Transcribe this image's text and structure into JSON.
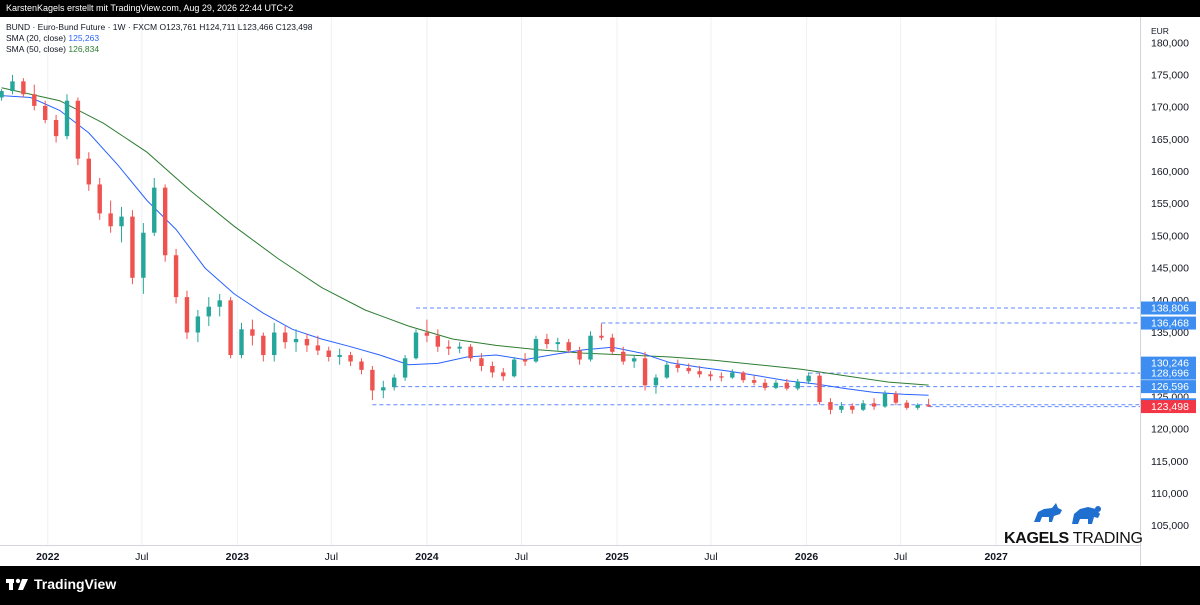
{
  "header": {
    "title": "KarstenKagels erstellt mit TradingView.com, Aug 29, 2026 22:44 UTC+2"
  },
  "legend": {
    "symbol_line": "BUND · Euro-Bund Future · 1W · FXCM  O123,761  H124,711  L123,466  C123,498",
    "sma20_label": "SMA (20, close)",
    "sma20_value": "125,263",
    "sma50_label": "SMA (50, close)",
    "sma50_value": "126,834"
  },
  "currency": "EUR",
  "brand": {
    "name_bold": "KAGELS",
    "name_light": " TRADING"
  },
  "footer": {
    "logo_text": "TradingView"
  },
  "colors": {
    "up": "#26a69a",
    "down": "#ef5350",
    "sma20": "#2962ff",
    "sma50": "#2e7d32",
    "level": "#2962ff",
    "label_bg": "#3d8ef0",
    "last_bg": "#f23645"
  },
  "chart_data": {
    "type": "candlestick",
    "timeframe": "1W",
    "ylim": [
      102000,
      184000
    ],
    "y_ticks": [
      "105,000",
      "110,000",
      "115,000",
      "120,000",
      "125,000",
      "130,000",
      "135,000",
      "140,000",
      "145,000",
      "150,000",
      "155,000",
      "160,000",
      "165,000",
      "170,000",
      "175,000",
      "180,000"
    ],
    "y_tick_values": [
      105000,
      110000,
      115000,
      120000,
      125000,
      130000,
      135000,
      140000,
      145000,
      150000,
      155000,
      160000,
      165000,
      170000,
      175000,
      180000
    ],
    "x_ticks": [
      "2022",
      "Jul",
      "2023",
      "Jul",
      "2024",
      "Jul",
      "2025",
      "Jul",
      "2026",
      "Jul",
      "2027"
    ],
    "x_tick_dates": [
      "2022-01-01",
      "2022-07-01",
      "2023-01-01",
      "2023-07-01",
      "2024-01-01",
      "2024-07-01",
      "2025-01-01",
      "2025-07-01",
      "2026-01-01",
      "2026-07-01",
      "2027-01-01"
    ],
    "x_range": [
      "2021-10-01",
      "2027-10-05"
    ],
    "ohlc": [
      [
        "2021-10-04",
        171500,
        172800,
        171000,
        172500
      ],
      [
        "2021-10-25",
        172500,
        175000,
        172000,
        174000
      ],
      [
        "2021-11-15",
        174000,
        174500,
        171500,
        172000
      ],
      [
        "2021-12-06",
        172000,
        173500,
        169500,
        170200
      ],
      [
        "2021-12-27",
        170200,
        171000,
        167500,
        168000
      ],
      [
        "2022-01-17",
        168000,
        168800,
        164500,
        165500
      ],
      [
        "2022-02-07",
        165500,
        172000,
        165000,
        171000
      ],
      [
        "2022-02-28",
        171000,
        171500,
        161000,
        162000
      ],
      [
        "2022-03-21",
        162000,
        163000,
        157000,
        158000
      ],
      [
        "2022-04-11",
        158000,
        159000,
        152500,
        153500
      ],
      [
        "2022-05-02",
        153500,
        155500,
        150500,
        151500
      ],
      [
        "2022-05-23",
        151500,
        154500,
        149000,
        153000
      ],
      [
        "2022-06-13",
        153000,
        154000,
        142500,
        143500
      ],
      [
        "2022-07-04",
        143500,
        152000,
        141000,
        150500
      ],
      [
        "2022-07-25",
        150500,
        159000,
        150000,
        157500
      ],
      [
        "2022-08-15",
        157500,
        158000,
        146000,
        147000
      ],
      [
        "2022-09-05",
        147000,
        148000,
        139500,
        140500
      ],
      [
        "2022-09-26",
        140500,
        141500,
        134000,
        135000
      ],
      [
        "2022-10-17",
        135000,
        138500,
        133500,
        137500
      ],
      [
        "2022-11-07",
        137500,
        140500,
        136000,
        139000
      ],
      [
        "2022-11-28",
        139000,
        141000,
        137500,
        140000
      ],
      [
        "2022-12-19",
        140000,
        140500,
        131000,
        131500
      ],
      [
        "2023-01-09",
        131500,
        136500,
        131000,
        135500
      ],
      [
        "2023-01-30",
        135500,
        137000,
        133000,
        134500
      ],
      [
        "2023-02-20",
        134500,
        135000,
        130500,
        131500
      ],
      [
        "2023-03-13",
        131500,
        136500,
        130500,
        135000
      ],
      [
        "2023-04-03",
        135000,
        136000,
        132500,
        133500
      ],
      [
        "2023-04-24",
        133500,
        135500,
        132000,
        134000
      ],
      [
        "2023-05-15",
        134000,
        134800,
        132000,
        133000
      ],
      [
        "2023-06-05",
        133000,
        134500,
        131500,
        132200
      ],
      [
        "2023-06-26",
        132200,
        132800,
        130500,
        131200
      ],
      [
        "2023-07-17",
        131200,
        132500,
        130000,
        131500
      ],
      [
        "2023-08-07",
        131500,
        132000,
        129800,
        130500
      ],
      [
        "2023-08-28",
        130500,
        131000,
        128500,
        129200
      ],
      [
        "2023-09-18",
        129200,
        129800,
        124500,
        126000
      ],
      [
        "2023-10-09",
        126000,
        127500,
        124800,
        126500
      ],
      [
        "2023-10-30",
        126500,
        128500,
        126000,
        128000
      ],
      [
        "2023-11-20",
        128000,
        131500,
        127500,
        131000
      ],
      [
        "2023-12-11",
        131000,
        135500,
        130800,
        135000
      ],
      [
        "2024-01-01",
        135000,
        137000,
        133500,
        134500
      ],
      [
        "2024-01-22",
        134500,
        135500,
        132000,
        132800
      ],
      [
        "2024-02-12",
        132800,
        133800,
        131500,
        132500
      ],
      [
        "2024-03-04",
        132500,
        133500,
        131800,
        132800
      ],
      [
        "2024-03-25",
        132800,
        133200,
        130500,
        131000
      ],
      [
        "2024-04-15",
        131000,
        131800,
        129000,
        129800
      ],
      [
        "2024-05-06",
        129800,
        130500,
        128000,
        128800
      ],
      [
        "2024-05-27",
        128800,
        129500,
        127500,
        128200
      ],
      [
        "2024-06-17",
        128200,
        131200,
        128000,
        130800
      ],
      [
        "2024-07-08",
        130800,
        131800,
        129800,
        130500
      ],
      [
        "2024-07-29",
        130500,
        134500,
        130300,
        134000
      ],
      [
        "2024-08-19",
        134000,
        134800,
        132500,
        133200
      ],
      [
        "2024-09-09",
        133200,
        134200,
        132200,
        133500
      ],
      [
        "2024-09-30",
        133500,
        134000,
        131800,
        132200
      ],
      [
        "2024-10-21",
        132200,
        132800,
        130000,
        130800
      ],
      [
        "2024-11-11",
        130800,
        135200,
        130500,
        134500
      ],
      [
        "2024-12-02",
        134500,
        136400,
        133800,
        134200
      ],
      [
        "2024-12-23",
        134200,
        134800,
        131500,
        132000
      ],
      [
        "2025-01-13",
        132000,
        132800,
        130000,
        130500
      ],
      [
        "2025-02-03",
        130500,
        131500,
        129500,
        131000
      ],
      [
        "2025-02-24",
        131000,
        132000,
        126000,
        126800
      ],
      [
        "2025-03-17",
        126800,
        128500,
        125500,
        128000
      ],
      [
        "2025-04-07",
        128000,
        130500,
        127800,
        130000
      ],
      [
        "2025-04-28",
        130000,
        130800,
        128800,
        129500
      ],
      [
        "2025-05-19",
        129500,
        130200,
        128600,
        129000
      ],
      [
        "2025-06-09",
        129000,
        129800,
        128000,
        128500
      ],
      [
        "2025-06-30",
        128500,
        129000,
        127500,
        128200
      ],
      [
        "2025-07-21",
        128200,
        128800,
        127400,
        128000
      ],
      [
        "2025-08-11",
        128000,
        129300,
        127800,
        128800
      ],
      [
        "2025-09-01",
        128800,
        129000,
        127200,
        127600
      ],
      [
        "2025-09-22",
        127600,
        128300,
        126800,
        127200
      ],
      [
        "2025-10-13",
        127200,
        127800,
        126000,
        126400
      ],
      [
        "2025-11-03",
        126400,
        127600,
        126200,
        127200
      ],
      [
        "2025-11-24",
        127200,
        127800,
        126000,
        126300
      ],
      [
        "2025-12-15",
        126300,
        127800,
        126000,
        127400
      ],
      [
        "2026-01-05",
        127400,
        128800,
        127000,
        128300
      ],
      [
        "2026-01-26",
        128300,
        128700,
        123800,
        124200
      ],
      [
        "2026-02-16",
        124200,
        124800,
        122300,
        123000
      ],
      [
        "2026-03-09",
        123000,
        124200,
        122500,
        123600
      ],
      [
        "2026-03-30",
        123600,
        124000,
        122400,
        123000
      ],
      [
        "2026-04-20",
        123000,
        124500,
        122800,
        124000
      ],
      [
        "2026-05-11",
        124000,
        124800,
        123000,
        123500
      ],
      [
        "2026-06-01",
        123500,
        126000,
        123300,
        125500
      ],
      [
        "2026-06-22",
        125500,
        125900,
        123700,
        124100
      ],
      [
        "2026-07-13",
        124100,
        124500,
        123000,
        123300
      ],
      [
        "2026-08-03",
        123300,
        124000,
        123000,
        123761
      ],
      [
        "2026-08-24",
        123761,
        124711,
        123466,
        123498
      ]
    ],
    "sma20": [
      [
        "2021-10-04",
        171800
      ],
      [
        "2021-11-29",
        171500
      ],
      [
        "2022-01-24",
        169500
      ],
      [
        "2022-03-21",
        166000
      ],
      [
        "2022-05-16",
        161000
      ],
      [
        "2022-07-11",
        155500
      ],
      [
        "2022-09-05",
        151000
      ],
      [
        "2022-10-31",
        145000
      ],
      [
        "2022-12-26",
        141000
      ],
      [
        "2023-02-20",
        138000
      ],
      [
        "2023-04-17",
        135500
      ],
      [
        "2023-06-12",
        134000
      ],
      [
        "2023-08-07",
        132800
      ],
      [
        "2023-10-02",
        131500
      ],
      [
        "2023-11-27",
        130000
      ],
      [
        "2024-01-22",
        130200
      ],
      [
        "2024-03-18",
        131200
      ],
      [
        "2024-05-13",
        131500
      ],
      [
        "2024-07-08",
        130800
      ],
      [
        "2024-09-02",
        131600
      ],
      [
        "2024-10-28",
        132300
      ],
      [
        "2024-12-23",
        132700
      ],
      [
        "2025-02-17",
        131800
      ],
      [
        "2025-04-14",
        130300
      ],
      [
        "2025-06-09",
        129600
      ],
      [
        "2025-08-04",
        129000
      ],
      [
        "2025-09-29",
        128300
      ],
      [
        "2025-11-24",
        127500
      ],
      [
        "2026-01-19",
        127000
      ],
      [
        "2026-03-16",
        126300
      ],
      [
        "2026-05-11",
        125700
      ],
      [
        "2026-07-06",
        125400
      ],
      [
        "2026-08-24",
        125263
      ]
    ],
    "sma50": [
      [
        "2021-10-04",
        173000
      ],
      [
        "2022-01-24",
        171000
      ],
      [
        "2022-04-18",
        167500
      ],
      [
        "2022-07-11",
        163000
      ],
      [
        "2022-10-03",
        157000
      ],
      [
        "2022-12-26",
        151500
      ],
      [
        "2023-03-20",
        146500
      ],
      [
        "2023-06-12",
        142000
      ],
      [
        "2023-09-04",
        138500
      ],
      [
        "2023-11-27",
        136000
      ],
      [
        "2024-02-19",
        134000
      ],
      [
        "2024-05-13",
        133000
      ],
      [
        "2024-08-05",
        132300
      ],
      [
        "2024-10-28",
        131800
      ],
      [
        "2025-01-20",
        131500
      ],
      [
        "2025-04-14",
        131200
      ],
      [
        "2025-07-07",
        130700
      ],
      [
        "2025-09-29",
        130000
      ],
      [
        "2025-12-22",
        129300
      ],
      [
        "2026-03-16",
        128300
      ],
      [
        "2026-06-08",
        127300
      ],
      [
        "2026-08-24",
        126834
      ]
    ],
    "levels": [
      {
        "value": 138806,
        "label": "138,806",
        "from": "2023-12-11"
      },
      {
        "value": 136468,
        "label": "136,468",
        "from": "2024-12-02"
      },
      {
        "value": 128696,
        "label": "128,696",
        "from": "2026-01-05"
      },
      {
        "value": 126596,
        "label": "126,596",
        "from": "2023-10-30"
      },
      {
        "value": 123782,
        "label": "123,782",
        "from": "2023-09-18"
      },
      {
        "value": 123498,
        "label": "123,498",
        "from": "2026-08-24",
        "last": true
      }
    ],
    "sma_labels": [
      {
        "value": 130246,
        "label": "130,246"
      }
    ]
  }
}
